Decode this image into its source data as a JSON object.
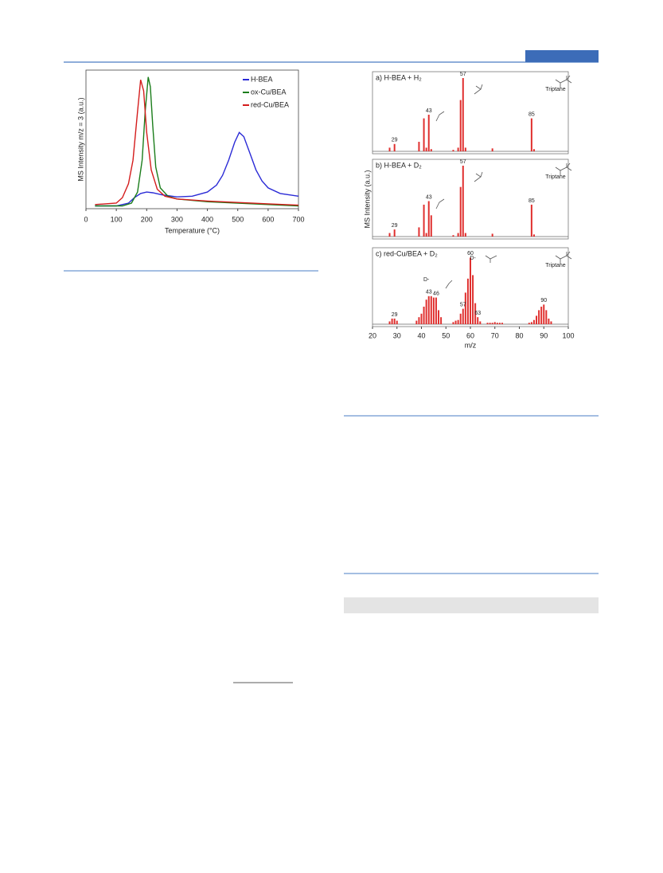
{
  "chart_data": [
    {
      "type": "line",
      "xlabel": "Temperature (°C)",
      "ylabel": "MS Intensity m/z = 3 (a.u.)",
      "xlim": [
        0,
        700
      ],
      "xticks": [
        0,
        100,
        200,
        300,
        400,
        500,
        600,
        700
      ],
      "ylim": [
        0,
        1
      ],
      "legend": "upper right",
      "series": [
        {
          "name": "H-BEA",
          "color": "#2b2bd6",
          "x": [
            30,
            100,
            140,
            160,
            180,
            200,
            220,
            250,
            300,
            350,
            400,
            430,
            450,
            470,
            490,
            505,
            520,
            540,
            560,
            580,
            600,
            640,
            700
          ],
          "values": [
            0.02,
            0.02,
            0.04,
            0.08,
            0.11,
            0.12,
            0.115,
            0.1,
            0.085,
            0.09,
            0.12,
            0.17,
            0.24,
            0.35,
            0.48,
            0.55,
            0.52,
            0.4,
            0.28,
            0.2,
            0.15,
            0.11,
            0.09
          ]
        },
        {
          "name": "ox-Cu/BEA",
          "color": "#1b7d1b",
          "x": [
            30,
            120,
            150,
            170,
            185,
            195,
            205,
            212,
            220,
            230,
            245,
            270,
            300,
            400,
            500,
            600,
            700
          ],
          "values": [
            0.02,
            0.02,
            0.04,
            0.12,
            0.35,
            0.7,
            0.95,
            0.88,
            0.6,
            0.3,
            0.15,
            0.09,
            0.07,
            0.05,
            0.04,
            0.03,
            0.02
          ]
        },
        {
          "name": "red-Cu/BEA",
          "color": "#d41c1c",
          "x": [
            30,
            100,
            120,
            140,
            155,
            170,
            180,
            190,
            200,
            215,
            235,
            260,
            300,
            400,
            500,
            600,
            700
          ],
          "values": [
            0.03,
            0.04,
            0.08,
            0.18,
            0.35,
            0.7,
            0.93,
            0.85,
            0.55,
            0.28,
            0.14,
            0.09,
            0.07,
            0.055,
            0.045,
            0.035,
            0.025
          ]
        }
      ]
    },
    {
      "type": "bar",
      "title": "a) H-BEA + H₂",
      "color": "#e0302f",
      "xlim": [
        20,
        100
      ],
      "ylim": [
        0,
        100
      ],
      "annotations": [
        "Triptane"
      ],
      "x": [
        27,
        29,
        39,
        41,
        42,
        43,
        44,
        53,
        55,
        56,
        57,
        58,
        69,
        85,
        86
      ],
      "values": [
        5,
        10,
        13,
        45,
        5,
        50,
        3,
        2,
        5,
        70,
        100,
        5,
        4,
        45,
        3
      ],
      "peak_labels": [
        29,
        43,
        57,
        85
      ]
    },
    {
      "type": "bar",
      "title": "b) H-BEA + D₂",
      "color": "#e0302f",
      "xlim": [
        20,
        100
      ],
      "ylim": [
        0,
        100
      ],
      "ylabel": "MS Intensity (a.u.)",
      "annotations": [
        "Triptane"
      ],
      "x": [
        27,
        29,
        39,
        41,
        42,
        43,
        44,
        53,
        55,
        56,
        57,
        58,
        69,
        85,
        86
      ],
      "values": [
        5,
        10,
        13,
        45,
        5,
        50,
        30,
        2,
        5,
        70,
        100,
        5,
        4,
        45,
        3
      ],
      "peak_labels": [
        29,
        43,
        57,
        85
      ]
    },
    {
      "type": "bar",
      "title": "c) red-Cu/BEA + D₂",
      "color": "#e0302f",
      "xlim": [
        20,
        100
      ],
      "ylim": [
        0,
        100
      ],
      "xlabel": "m/z",
      "xticks": [
        20,
        30,
        40,
        50,
        60,
        70,
        80,
        90,
        100
      ],
      "annotations": [
        "Triptane",
        "D-",
        "D-"
      ],
      "x": [
        27,
        28,
        29,
        30,
        38,
        39,
        40,
        41,
        42,
        43,
        44,
        45,
        46,
        47,
        48,
        53,
        54,
        55,
        56,
        57,
        58,
        59,
        60,
        61,
        62,
        63,
        64,
        67,
        68,
        69,
        70,
        71,
        72,
        73,
        84,
        85,
        86,
        87,
        88,
        89,
        90,
        91,
        92,
        93
      ],
      "values": [
        4,
        8,
        8,
        5,
        5,
        10,
        15,
        25,
        35,
        40,
        40,
        38,
        38,
        20,
        10,
        3,
        5,
        6,
        15,
        22,
        45,
        65,
        95,
        70,
        30,
        10,
        4,
        2,
        2,
        2,
        3,
        2,
        2,
        2,
        2,
        3,
        6,
        12,
        20,
        25,
        28,
        20,
        8,
        4
      ],
      "peak_labels": [
        29,
        43,
        46,
        57,
        60,
        63,
        90
      ]
    }
  ]
}
